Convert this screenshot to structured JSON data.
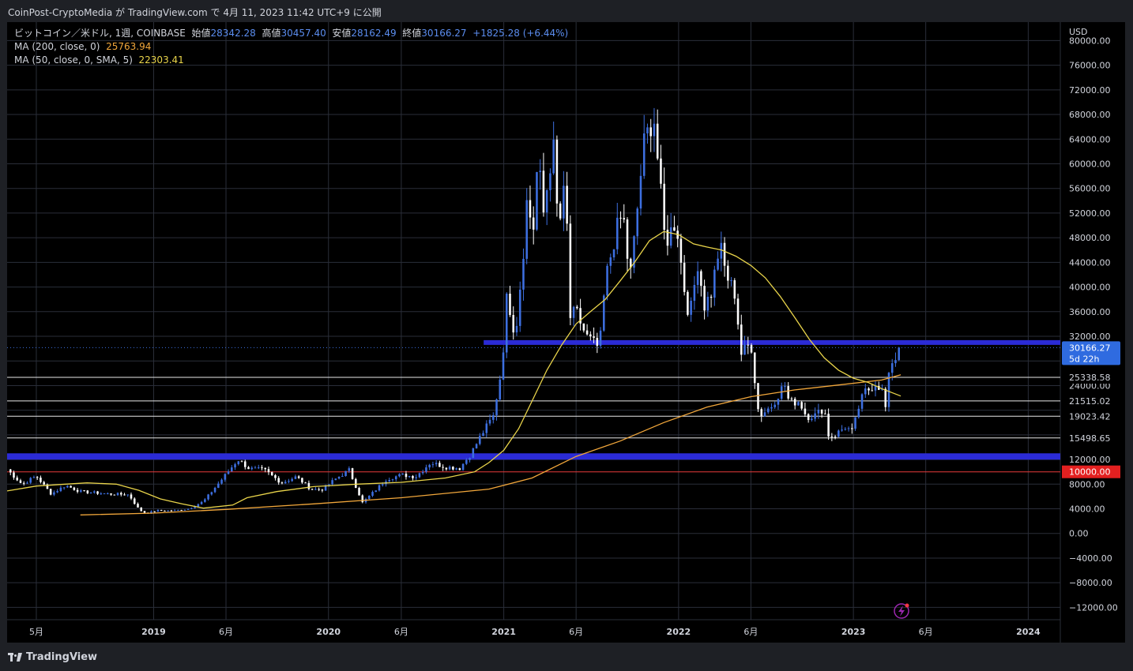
{
  "header": {
    "publish_text": "CoinPost-CryptoMedia が TradingView.com で 4月 11, 2023 11:42 UTC+9 に公開"
  },
  "legend": {
    "symbol": "ビットコイン／米ドル, 1週, COINBASE",
    "open_label": "始値",
    "open": "28342.28",
    "high_label": "高値",
    "high": "30457.40",
    "low_label": "安値",
    "low": "28162.49",
    "close_label": "終値",
    "close": "30166.27",
    "change": "+1825.28 (+6.44%)",
    "ma200_label": "MA (200, close, 0)",
    "ma200_value": "25763.94",
    "ma50_label": "MA (50, close, 0, SMA, 5)",
    "ma50_value": "22303.41"
  },
  "brand": {
    "name": "TradingView"
  },
  "chart_data": {
    "type": "candlestick",
    "currency_label": "USD",
    "ylim": [
      -14000,
      83000
    ],
    "y_ticks": [
      -12000,
      -8000,
      -4000,
      0,
      4000,
      8000,
      12000,
      16000,
      20000,
      24000,
      28000,
      32000,
      36000,
      40000,
      44000,
      48000,
      52000,
      56000,
      60000,
      64000,
      68000,
      72000,
      76000,
      80000
    ],
    "y_tick_labels": [
      "−12000.00",
      "−8000.00",
      "−4000.00",
      "0.00",
      "4000.00",
      "8000.00",
      "12000.00",
      "",
      "",
      "24000.00",
      "",
      "32000.00",
      "36000.00",
      "40000.00",
      "44000.00",
      "48000.00",
      "52000.00",
      "56000.00",
      "60000.00",
      "64000.00",
      "68000.00",
      "72000.00",
      "76000.00",
      "80000.00"
    ],
    "x_ticks": [
      {
        "label": "5月",
        "date": "2018-05-01",
        "bold": false
      },
      {
        "label": "2019",
        "date": "2019-01-01",
        "bold": true
      },
      {
        "label": "6月",
        "date": "2019-06-01",
        "bold": false
      },
      {
        "label": "2020",
        "date": "2020-01-01",
        "bold": true
      },
      {
        "label": "6月",
        "date": "2020-06-01",
        "bold": false
      },
      {
        "label": "2021",
        "date": "2021-01-01",
        "bold": true
      },
      {
        "label": "6月",
        "date": "2021-06-01",
        "bold": false
      },
      {
        "label": "2022",
        "date": "2022-01-01",
        "bold": true
      },
      {
        "label": "6月",
        "date": "2022-06-01",
        "bold": false
      },
      {
        "label": "2023",
        "date": "2023-01-01",
        "bold": true
      },
      {
        "label": "6月",
        "date": "2023-06-01",
        "bold": false
      },
      {
        "label": "2024",
        "date": "2024-01-01",
        "bold": true
      }
    ],
    "xlim": [
      "2018-03-01",
      "2024-03-08"
    ],
    "price_points": [
      [
        "2018-03-01",
        10400
      ],
      [
        "2018-04-01",
        8000
      ],
      [
        "2018-05-01",
        9300
      ],
      [
        "2018-06-01",
        6400
      ],
      [
        "2018-07-01",
        7800
      ],
      [
        "2018-08-01",
        6800
      ],
      [
        "2018-09-01",
        6600
      ],
      [
        "2018-10-01",
        6400
      ],
      [
        "2018-11-10",
        6300
      ],
      [
        "2018-12-01",
        3900
      ],
      [
        "2018-12-15",
        3300
      ],
      [
        "2019-01-10",
        3700
      ],
      [
        "2019-02-15",
        3700
      ],
      [
        "2019-03-15",
        4000
      ],
      [
        "2019-04-15",
        5200
      ],
      [
        "2019-05-15",
        8000
      ],
      [
        "2019-06-26",
        12000
      ],
      [
        "2019-07-20",
        10500
      ],
      [
        "2019-08-20",
        10300
      ],
      [
        "2019-09-25",
        8200
      ],
      [
        "2019-10-26",
        9200
      ],
      [
        "2019-11-25",
        7200
      ],
      [
        "2019-12-18",
        7100
      ],
      [
        "2020-01-15",
        8800
      ],
      [
        "2020-02-13",
        10300
      ],
      [
        "2020-03-12",
        5000
      ],
      [
        "2020-04-01",
        6500
      ],
      [
        "2020-05-01",
        8800
      ],
      [
        "2020-06-01",
        9500
      ],
      [
        "2020-07-01",
        9200
      ],
      [
        "2020-08-01",
        11500
      ],
      [
        "2020-09-01",
        10800
      ],
      [
        "2020-10-01",
        10600
      ],
      [
        "2020-10-25",
        13000
      ],
      [
        "2020-11-15",
        16000
      ],
      [
        "2020-12-10",
        19000
      ],
      [
        "2020-12-28",
        27000
      ],
      [
        "2021-01-08",
        39000
      ],
      [
        "2021-01-25",
        32000
      ],
      [
        "2021-02-10",
        45000
      ],
      [
        "2021-02-21",
        57000
      ],
      [
        "2021-03-01",
        46000
      ],
      [
        "2021-03-13",
        61000
      ],
      [
        "2021-03-25",
        52000
      ],
      [
        "2021-04-14",
        63500
      ],
      [
        "2021-04-25",
        49000
      ],
      [
        "2021-05-10",
        57000
      ],
      [
        "2021-05-19",
        35000
      ],
      [
        "2021-06-01",
        36000
      ],
      [
        "2021-06-22",
        32000
      ],
      [
        "2021-07-20",
        30000
      ],
      [
        "2021-08-01",
        41000
      ],
      [
        "2021-08-23",
        49000
      ],
      [
        "2021-09-07",
        52000
      ],
      [
        "2021-09-21",
        41000
      ],
      [
        "2021-10-01",
        48000
      ],
      [
        "2021-10-20",
        63000
      ],
      [
        "2021-11-10",
        68000
      ],
      [
        "2021-11-26",
        54000
      ],
      [
        "2021-12-04",
        47000
      ],
      [
        "2021-12-27",
        51000
      ],
      [
        "2022-01-10",
        41000
      ],
      [
        "2022-01-24",
        35000
      ],
      [
        "2022-02-10",
        44000
      ],
      [
        "2022-02-24",
        37000
      ],
      [
        "2022-03-10",
        39000
      ],
      [
        "2022-03-28",
        47000
      ],
      [
        "2022-04-10",
        42000
      ],
      [
        "2022-05-01",
        38500
      ],
      [
        "2022-05-10",
        29000
      ],
      [
        "2022-06-01",
        31000
      ],
      [
        "2022-06-13",
        22000
      ],
      [
        "2022-06-18",
        19000
      ],
      [
        "2022-07-15",
        20800
      ],
      [
        "2022-08-10",
        24300
      ],
      [
        "2022-08-20",
        21200
      ],
      [
        "2022-09-10",
        21500
      ],
      [
        "2022-09-25",
        19000
      ],
      [
        "2022-10-15",
        19200
      ],
      [
        "2022-11-01",
        20500
      ],
      [
        "2022-11-09",
        16000
      ],
      [
        "2022-11-21",
        15800
      ],
      [
        "2022-12-15",
        17300
      ],
      [
        "2022-12-30",
        16500
      ],
      [
        "2023-01-14",
        21000
      ],
      [
        "2023-01-25",
        23000
      ],
      [
        "2023-02-05",
        23500
      ],
      [
        "2023-02-15",
        24500
      ],
      [
        "2023-03-01",
        23500
      ],
      [
        "2023-03-10",
        20000
      ],
      [
        "2023-03-15",
        24800
      ],
      [
        "2023-03-22",
        28000
      ],
      [
        "2023-03-29",
        28500
      ],
      [
        "2023-04-05",
        28000
      ],
      [
        "2023-04-10",
        30166
      ]
    ],
    "ma50_points": [
      [
        "2018-03-01",
        6900
      ],
      [
        "2018-05-01",
        7700
      ],
      [
        "2018-07-01",
        8000
      ],
      [
        "2018-08-15",
        8200
      ],
      [
        "2018-10-15",
        8000
      ],
      [
        "2018-12-01",
        7000
      ],
      [
        "2019-01-15",
        5600
      ],
      [
        "2019-03-01",
        4800
      ],
      [
        "2019-04-15",
        4100
      ],
      [
        "2019-06-15",
        4600
      ],
      [
        "2019-07-15",
        5800
      ],
      [
        "2019-09-15",
        6800
      ],
      [
        "2019-12-01",
        7600
      ],
      [
        "2020-03-01",
        8000
      ],
      [
        "2020-06-01",
        8300
      ],
      [
        "2020-09-01",
        9000
      ],
      [
        "2020-11-01",
        10000
      ],
      [
        "2020-12-01",
        11500
      ],
      [
        "2021-01-01",
        13500
      ],
      [
        "2021-02-01",
        17000
      ],
      [
        "2021-03-01",
        21500
      ],
      [
        "2021-04-01",
        26500
      ],
      [
        "2021-05-01",
        30500
      ],
      [
        "2021-06-01",
        34000
      ],
      [
        "2021-07-01",
        36000
      ],
      [
        "2021-08-01",
        38000
      ],
      [
        "2021-09-01",
        41000
      ],
      [
        "2021-10-01",
        44000
      ],
      [
        "2021-11-01",
        47500
      ],
      [
        "2021-12-01",
        49000
      ],
      [
        "2022-01-01",
        48500
      ],
      [
        "2022-02-01",
        47000
      ],
      [
        "2022-03-01",
        46500
      ],
      [
        "2022-04-01",
        46000
      ],
      [
        "2022-05-01",
        45000
      ],
      [
        "2022-06-01",
        43500
      ],
      [
        "2022-07-01",
        41500
      ],
      [
        "2022-08-01",
        38500
      ],
      [
        "2022-09-01",
        35000
      ],
      [
        "2022-10-01",
        31500
      ],
      [
        "2022-11-01",
        28500
      ],
      [
        "2022-12-01",
        26500
      ],
      [
        "2023-01-01",
        25200
      ],
      [
        "2023-02-01",
        24500
      ],
      [
        "2023-03-01",
        23500
      ],
      [
        "2023-04-10",
        22303
      ]
    ],
    "ma200_points": [
      [
        "2018-08-01",
        3000
      ],
      [
        "2019-01-01",
        3300
      ],
      [
        "2019-06-01",
        3900
      ],
      [
        "2019-12-01",
        4800
      ],
      [
        "2020-06-01",
        5800
      ],
      [
        "2020-12-01",
        7200
      ],
      [
        "2021-03-01",
        9000
      ],
      [
        "2021-06-01",
        12500
      ],
      [
        "2021-09-01",
        15000
      ],
      [
        "2021-12-01",
        18000
      ],
      [
        "2022-03-01",
        20500
      ],
      [
        "2022-06-01",
        22200
      ],
      [
        "2022-09-01",
        23300
      ],
      [
        "2022-12-01",
        24100
      ],
      [
        "2023-03-01",
        24900
      ],
      [
        "2023-04-10",
        25764
      ]
    ],
    "horizontal_lines": [
      {
        "value": 31000,
        "color": "#2b2bd6",
        "width": 6,
        "from": "2020-11-20",
        "label": ""
      },
      {
        "value": 12500,
        "color": "#2b2bd6",
        "width": 8,
        "from": "2018-03-01",
        "label": ""
      },
      {
        "value": 25338.58,
        "color": "#e8e8e8",
        "width": 1,
        "from": "2018-03-01",
        "label": "25338.58"
      },
      {
        "value": 21515.02,
        "color": "#e8e8e8",
        "width": 1,
        "from": "2018-03-01",
        "label": "21515.02"
      },
      {
        "value": 19023.42,
        "color": "#e8e8e8",
        "width": 1,
        "from": "2018-03-01",
        "label": "19023.42"
      },
      {
        "value": 15498.65,
        "color": "#e8e8e8",
        "width": 1,
        "from": "2018-03-01",
        "label": "15498.65"
      },
      {
        "value": 10000,
        "color": "#e83a3a",
        "width": 1,
        "from": "2018-03-01",
        "label": "10000.00"
      }
    ],
    "last_price": {
      "value": 30166.27,
      "label": "30166.27",
      "countdown": "5d 22h"
    },
    "colors": {
      "up": "#3d6fe0",
      "down": "#ffffff",
      "ma50": "#e9d44a",
      "ma200": "#f2a73b",
      "grid": "#2a2e39",
      "axis_text": "#d1d4dc",
      "last_price": "#2f6be0",
      "red_label": "#e32020"
    }
  }
}
